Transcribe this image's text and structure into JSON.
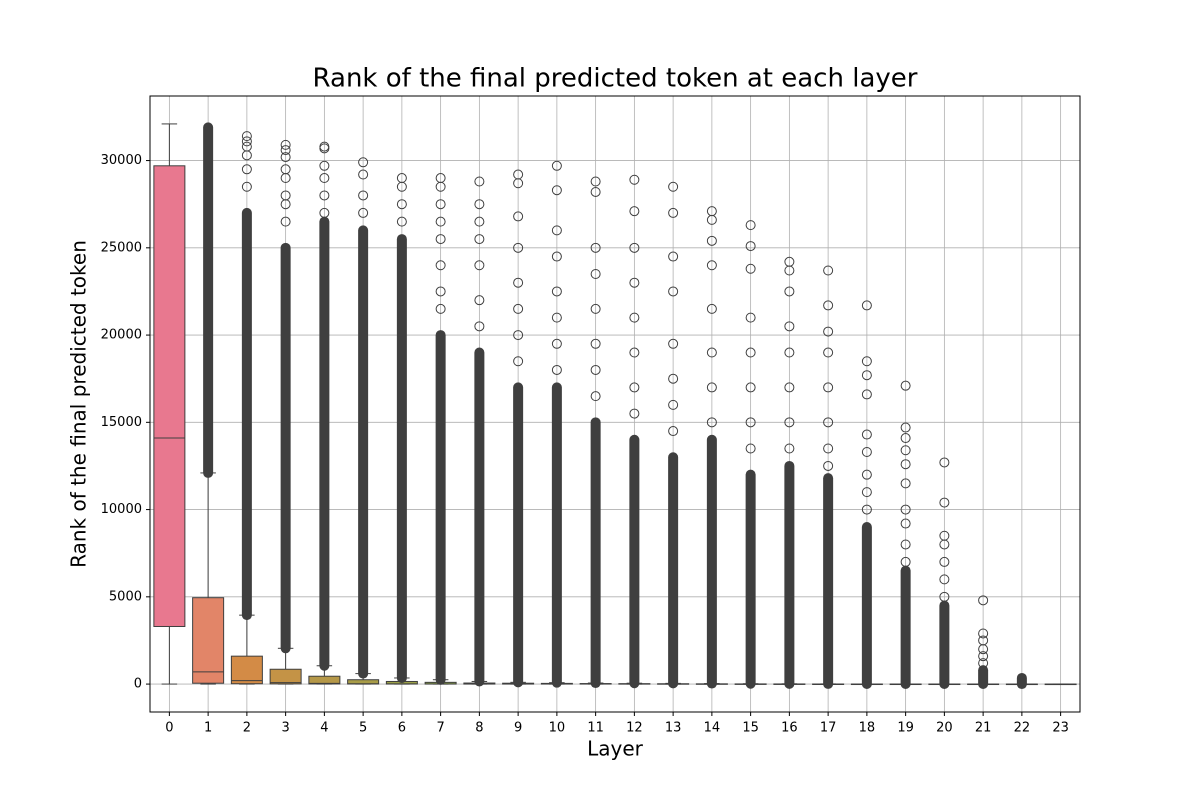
{
  "chart_data": {
    "type": "box",
    "title": "Rank of the final predicted token at each layer",
    "xlabel": "Layer",
    "ylabel": "Rank of the final predicted token",
    "categories": [
      "0",
      "1",
      "2",
      "3",
      "4",
      "5",
      "6",
      "7",
      "8",
      "9",
      "10",
      "11",
      "12",
      "13",
      "14",
      "15",
      "16",
      "17",
      "18",
      "19",
      "20",
      "21",
      "22",
      "23"
    ],
    "boxes": [
      {
        "color": "#e8788f",
        "whislo": 0,
        "q1": 3300,
        "med": 14100,
        "q3": 29700,
        "whishi": 32100
      },
      {
        "color": "#e28568",
        "whislo": 0,
        "q1": 50,
        "med": 700,
        "q3": 4950,
        "whishi": 12100,
        "dense_fliers": [
          12100,
          31900
        ]
      },
      {
        "color": "#d38b46",
        "whislo": 0,
        "q1": 20,
        "med": 200,
        "q3": 1600,
        "whishi": 3950,
        "dense_fliers": [
          3950,
          27000
        ],
        "fliers": [
          28500,
          29500,
          30300,
          30800,
          31100,
          31400
        ]
      },
      {
        "color": "#c49346",
        "whislo": 0,
        "q1": 10,
        "med": 80,
        "q3": 850,
        "whishi": 2050,
        "dense_fliers": [
          2050,
          25000
        ],
        "fliers": [
          26500,
          27500,
          28000,
          29000,
          29500,
          30200,
          30600,
          30900
        ]
      },
      {
        "color": "#b59848",
        "whislo": 0,
        "q1": 5,
        "med": 40,
        "q3": 450,
        "whishi": 1050,
        "dense_fliers": [
          1050,
          26500
        ],
        "fliers": [
          27000,
          28000,
          29000,
          29700,
          30700,
          30800
        ]
      },
      {
        "color": "#a89c48",
        "whislo": 0,
        "q1": 3,
        "med": 20,
        "q3": 250,
        "whishi": 600,
        "dense_fliers": [
          600,
          26000
        ],
        "fliers": [
          27000,
          28000,
          29200,
          29900
        ]
      },
      {
        "color": "#9a9f48",
        "whislo": 0,
        "q1": 2,
        "med": 10,
        "q3": 150,
        "whishi": 350,
        "dense_fliers": [
          350,
          25500
        ],
        "fliers": [
          26500,
          27500,
          28500,
          29000
        ]
      },
      {
        "color": "#8aa349",
        "whislo": 0,
        "q1": 1,
        "med": 5,
        "q3": 100,
        "whishi": 250,
        "dense_fliers": [
          250,
          20000
        ],
        "fliers": [
          21500,
          22500,
          24000,
          25500,
          26500,
          27500,
          28500,
          29000
        ]
      },
      {
        "color": "#74a84a",
        "whislo": 0,
        "q1": 0,
        "med": 3,
        "q3": 60,
        "whishi": 150,
        "dense_fliers": [
          150,
          19000
        ],
        "fliers": [
          20500,
          22000,
          24000,
          25500,
          26500,
          27500,
          28800
        ]
      },
      {
        "color": "#58ac4b",
        "whislo": 0,
        "q1": 0,
        "med": 2,
        "q3": 50,
        "whishi": 100,
        "dense_fliers": [
          100,
          17000
        ],
        "fliers": [
          18500,
          20000,
          21500,
          23000,
          25000,
          26800,
          28700,
          29200
        ]
      },
      {
        "color": "#4aab6f",
        "whislo": 0,
        "q1": 0,
        "med": 2,
        "q3": 40,
        "whishi": 80,
        "dense_fliers": [
          80,
          17000
        ],
        "fliers": [
          18000,
          19500,
          21000,
          22500,
          24500,
          26000,
          28300,
          29700
        ]
      },
      {
        "color": "#4caa88",
        "whislo": 0,
        "q1": 0,
        "med": 1,
        "q3": 30,
        "whishi": 60,
        "dense_fliers": [
          60,
          15000
        ],
        "fliers": [
          16500,
          18000,
          19500,
          21500,
          23500,
          25000,
          28200,
          28800
        ]
      },
      {
        "color": "#4da999",
        "whislo": 0,
        "q1": 0,
        "med": 1,
        "q3": 25,
        "whishi": 50,
        "dense_fliers": [
          50,
          14000
        ],
        "fliers": [
          15500,
          17000,
          19000,
          21000,
          23000,
          25000,
          27100,
          28900
        ]
      },
      {
        "color": "#4ea8a6",
        "whislo": 0,
        "q1": 0,
        "med": 1,
        "q3": 20,
        "whishi": 40,
        "dense_fliers": [
          40,
          13000
        ],
        "fliers": [
          14500,
          16000,
          17500,
          19500,
          22500,
          24500,
          27000,
          28500
        ]
      },
      {
        "color": "#50a6b3",
        "whislo": 0,
        "q1": 0,
        "med": 1,
        "q3": 15,
        "whishi": 30,
        "dense_fliers": [
          30,
          14000
        ],
        "fliers": [
          15000,
          17000,
          19000,
          21500,
          24000,
          25400,
          26600,
          27100
        ]
      },
      {
        "color": "#52a3c2",
        "whislo": 0,
        "q1": 0,
        "med": 1,
        "q3": 10,
        "whishi": 20,
        "dense_fliers": [
          20,
          12000
        ],
        "fliers": [
          13500,
          15000,
          17000,
          19000,
          21000,
          23800,
          25100,
          26300
        ]
      },
      {
        "color": "#5b9ed5",
        "whislo": 0,
        "q1": 0,
        "med": 1,
        "q3": 8,
        "whishi": 15,
        "dense_fliers": [
          15,
          12500
        ],
        "fliers": [
          13500,
          15000,
          17000,
          19000,
          20500,
          22500,
          23700,
          24200
        ]
      },
      {
        "color": "#7a95e0",
        "whislo": 0,
        "q1": 0,
        "med": 1,
        "q3": 5,
        "whishi": 10,
        "dense_fliers": [
          10,
          11800
        ],
        "fliers": [
          12500,
          13500,
          15000,
          17000,
          19000,
          20200,
          21700,
          23700
        ]
      },
      {
        "color": "#9b8ce4",
        "whislo": 0,
        "q1": 0,
        "med": 1,
        "q3": 3,
        "whishi": 5,
        "dense_fliers": [
          5,
          9000
        ],
        "fliers": [
          10000,
          11000,
          12000,
          13300,
          14300,
          16600,
          17700,
          18500,
          21700
        ]
      },
      {
        "color": "#b583e6",
        "whislo": 0,
        "q1": 0,
        "med": 1,
        "q3": 3,
        "whishi": 5,
        "dense_fliers": [
          5,
          6500
        ],
        "fliers": [
          7000,
          8000,
          9200,
          10000,
          11500,
          12600,
          13400,
          14100,
          14700,
          17100
        ]
      },
      {
        "color": "#cb79e2",
        "whislo": 0,
        "q1": 0,
        "med": 1,
        "q3": 3,
        "whishi": 5,
        "dense_fliers": [
          5,
          4500
        ],
        "fliers": [
          5000,
          6000,
          7000,
          8000,
          8500,
          10400,
          12700
        ]
      },
      {
        "color": "#dd70d3",
        "whislo": 0,
        "q1": 0,
        "med": 1,
        "q3": 3,
        "whishi": 5,
        "dense_fliers": [
          5,
          800
        ],
        "fliers": [
          1200,
          1600,
          2000,
          2500,
          2900,
          4800
        ]
      },
      {
        "color": "#e371bb",
        "whislo": 0,
        "q1": 0,
        "med": 0,
        "q3": 1,
        "whishi": 2,
        "dense_fliers": [
          2,
          350
        ]
      },
      {
        "color": "#e676a6",
        "whislo": 0,
        "q1": 0,
        "med": 0,
        "q3": 0,
        "whishi": 0
      }
    ],
    "ylim": [
      -1600,
      33700
    ],
    "yticks": [
      0,
      5000,
      10000,
      15000,
      20000,
      25000,
      30000
    ],
    "grid": true
  }
}
